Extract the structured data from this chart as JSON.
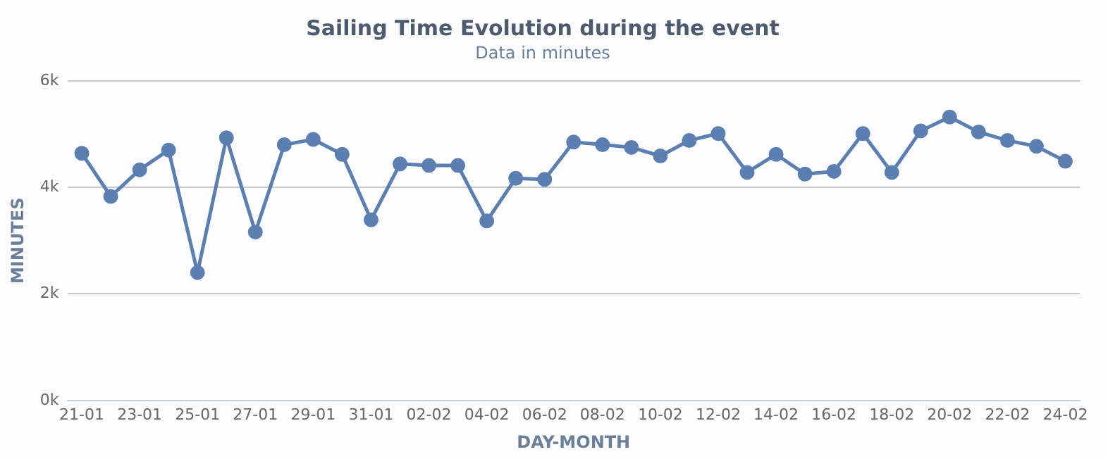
{
  "chart_data": {
    "type": "line",
    "title": "Sailing Time Evolution during the event",
    "subtitle": "Data in minutes",
    "xlabel": "DAY-MONTH",
    "ylabel": "MINUTES",
    "categories": [
      "21-01",
      null,
      "23-01",
      null,
      "25-01",
      null,
      "27-01",
      null,
      "29-01",
      null,
      "31-01",
      null,
      "02-02",
      null,
      "04-02",
      null,
      "06-02",
      null,
      "08-02",
      null,
      "10-02",
      null,
      "12-02",
      null,
      "14-02",
      null,
      "16-02",
      null,
      "18-02",
      null,
      "20-02",
      null,
      "22-02",
      null,
      "24-02"
    ],
    "series": [
      {
        "color": "#5a7fb0",
        "values": [
          4640,
          3830,
          4330,
          4700,
          2400,
          4930,
          3160,
          4800,
          4900,
          4620,
          3390,
          4440,
          4410,
          4410,
          3370,
          4170,
          4150,
          4850,
          4800,
          4750,
          4590,
          4880,
          5010,
          4280,
          4620,
          4250,
          4300,
          5010,
          4280,
          5060,
          5320,
          5040,
          4880,
          4770,
          4490
        ]
      }
    ],
    "ylim": [
      0,
      6000
    ],
    "yticks": [
      {
        "value": 0,
        "label": "0k"
      },
      {
        "value": 2000,
        "label": "2k"
      },
      {
        "value": 4000,
        "label": "4k"
      },
      {
        "value": 6000,
        "label": "6k"
      }
    ],
    "grid": "y",
    "legend": false,
    "marker": "circle",
    "line_style": "solid"
  }
}
